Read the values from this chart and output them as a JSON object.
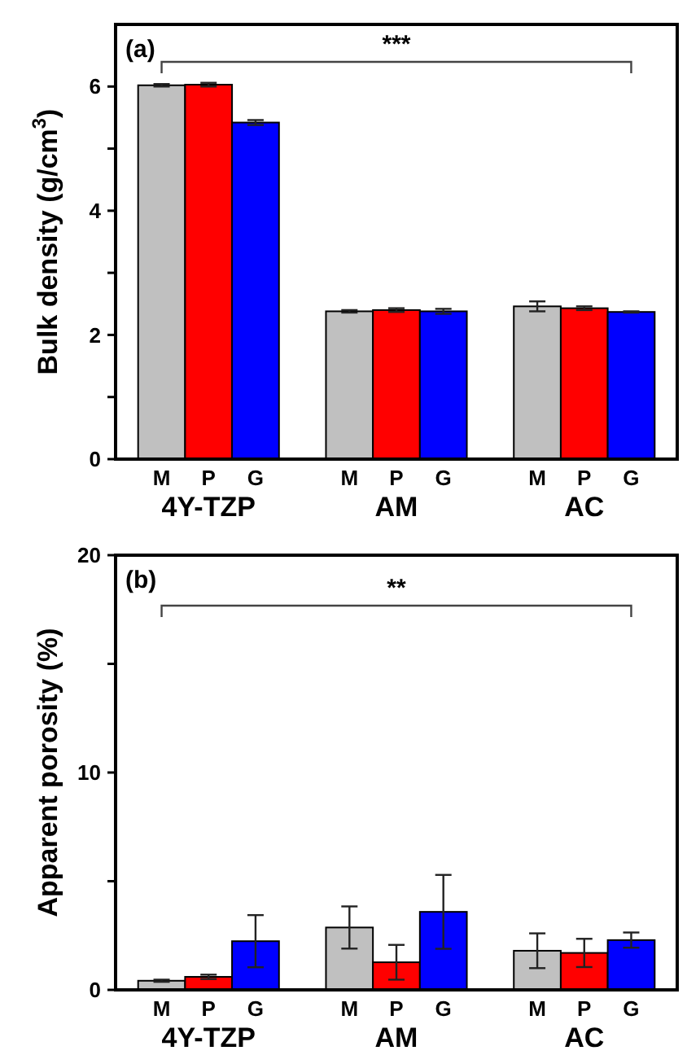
{
  "chart_data": [
    {
      "type": "bar",
      "title": "(a)",
      "ylabel": "Bulk density (g/cm$^{3}$)",
      "categories": [
        "4Y-TZP",
        "AM",
        "AC"
      ],
      "ylim": [
        0,
        7
      ],
      "yticks": [
        0,
        {
          "value": 1,
          "label": null
        },
        2,
        {
          "value": 3,
          "label": null
        },
        4,
        {
          "value": 5,
          "label": null
        },
        6
      ],
      "annotations": [
        "***"
      ],
      "series": [
        {
          "name": "M",
          "color": "#c0c0c0",
          "values": [
            6.02,
            2.38,
            2.46
          ],
          "errors": [
            0.02,
            0.02,
            0.08
          ]
        },
        {
          "name": "P",
          "color": "#ff0000",
          "values": [
            6.03,
            2.4,
            2.43
          ],
          "errors": [
            0.03,
            0.03,
            0.03
          ]
        },
        {
          "name": "G",
          "color": "#0000ff",
          "values": [
            5.42,
            2.38,
            2.37
          ],
          "errors": [
            0.04,
            0.04,
            0.01
          ]
        }
      ]
    },
    {
      "type": "bar",
      "title": "(b)",
      "ylabel": "Apparent porosity (%)",
      "categories": [
        "4Y-TZP",
        "AM",
        "AC"
      ],
      "ylim": [
        0,
        20
      ],
      "yticks": [
        0,
        {
          "value": 5,
          "label": null
        },
        10,
        {
          "value": 15,
          "label": null
        },
        20
      ],
      "annotations": [
        "**"
      ],
      "series": [
        {
          "name": "M",
          "color": "#c0c0c0",
          "values": [
            0.42,
            2.87,
            1.8
          ],
          "errors": [
            0.05,
            0.97,
            0.8
          ]
        },
        {
          "name": "P",
          "color": "#ff0000",
          "values": [
            0.6,
            1.27,
            1.7
          ],
          "errors": [
            0.1,
            0.8,
            0.65
          ]
        },
        {
          "name": "G",
          "color": "#0000ff",
          "values": [
            2.24,
            3.59,
            2.29
          ],
          "errors": [
            1.2,
            1.7,
            0.35
          ]
        }
      ]
    }
  ]
}
